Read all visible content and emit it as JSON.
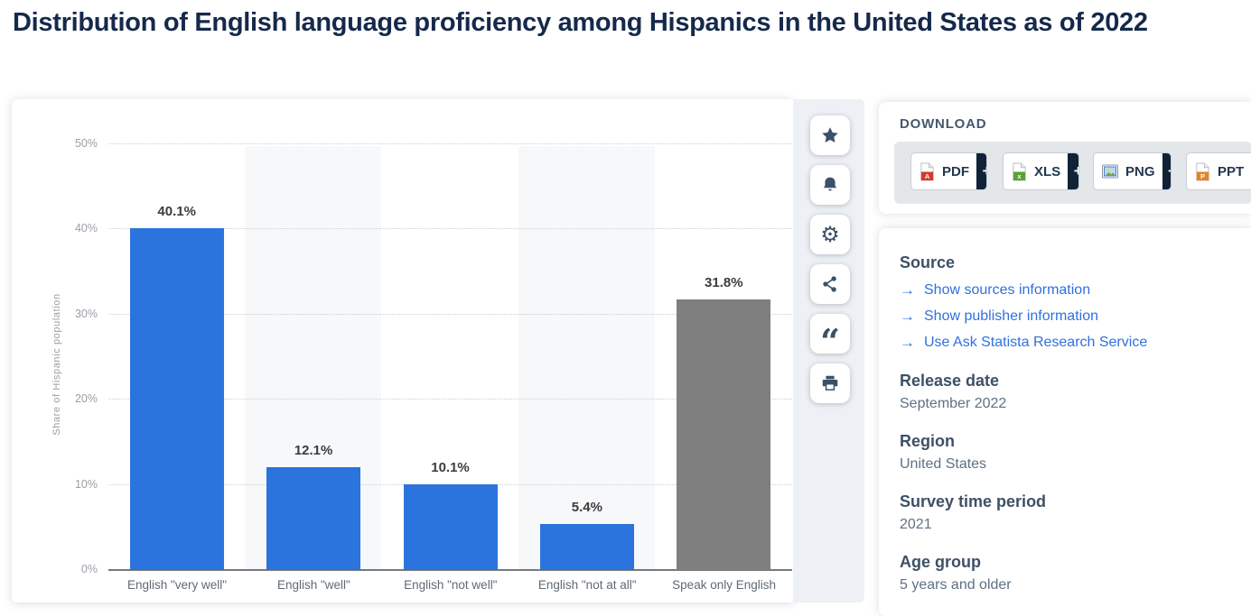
{
  "page_title": "Distribution of English language proficiency among Hispanics in the United States as of 2022",
  "chart_data": {
    "type": "bar",
    "title": "Distribution of English language proficiency among Hispanics in the United States as of 2022",
    "categories": [
      "English \"very well\"",
      "English \"well\"",
      "English \"not well\"",
      "English \"not at all\"",
      "Speak only English"
    ],
    "values": [
      40.1,
      12.1,
      10.1,
      5.4,
      31.8
    ],
    "value_labels": [
      "40.1%",
      "12.1%",
      "10.1%",
      "5.4%",
      "31.8%"
    ],
    "xlabel": "",
    "ylabel": "Share of Hispanic population",
    "ylim": [
      0,
      50
    ],
    "yticks": [
      "0%",
      "10%",
      "20%",
      "30%",
      "40%",
      "50%"
    ],
    "grid": "horizontal dotted gridlines, alternating light column stripes",
    "legend": "none",
    "bar_colors": [
      "#2c74dd",
      "#2c74dd",
      "#2c74dd",
      "#2c74dd",
      "#7f7f7f"
    ]
  },
  "toolbar": {
    "icons": [
      "star-icon",
      "bell-icon",
      "gear-icon",
      "share-icon",
      "quote-icon",
      "print-icon"
    ]
  },
  "download": {
    "heading": "DOWNLOAD",
    "plus_label": "+",
    "buttons": [
      {
        "label": "PDF",
        "icon": "pdf-file-icon",
        "icon_color": "#d6382c"
      },
      {
        "label": "XLS",
        "icon": "xls-file-icon",
        "icon_color": "#5da032"
      },
      {
        "label": "PNG",
        "icon": "png-file-icon",
        "icon_color": "#4a80c8"
      },
      {
        "label": "PPT",
        "icon": "ppt-file-icon",
        "icon_color": "#e8821e"
      }
    ]
  },
  "info": {
    "source_heading": "Source",
    "link_arrow": "→",
    "links": [
      "Show sources information",
      "Show publisher information",
      "Use Ask Statista Research Service"
    ],
    "fields": [
      {
        "label": "Release date",
        "value": "September 2022"
      },
      {
        "label": "Region",
        "value": "United States"
      },
      {
        "label": "Survey time period",
        "value": "2021"
      },
      {
        "label": "Age group",
        "value": "5 years and older"
      }
    ]
  },
  "colors": {
    "title_navy": "#15294b",
    "bar_blue": "#2c74dd",
    "bar_gray": "#7f7f7f",
    "link_blue": "#2f71de",
    "heading_navy": "#3e5066",
    "value_text": "#5f7183",
    "icon_navy": "#3b5168",
    "plus_dark": "#0f2237",
    "toolbar_strip": "#edf0f4",
    "tray_gray": "#e4e7ea"
  }
}
